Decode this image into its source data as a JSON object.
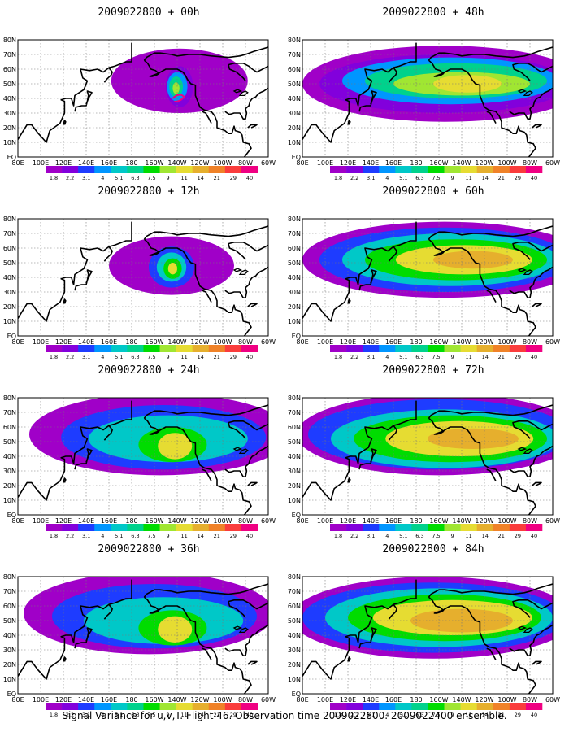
{
  "panels": [
    {
      "title": "2009022800 + 00h"
    },
    {
      "title": "2009022800 + 48h"
    },
    {
      "title": "2009022800 + 12h"
    },
    {
      "title": "2009022800 + 60h"
    },
    {
      "title": "2009022800 + 24h"
    },
    {
      "title": "2009022800 + 72h"
    },
    {
      "title": "2009022800 + 36h"
    },
    {
      "title": "2009022800 + 84h"
    }
  ],
  "lat_labels": [
    "80N",
    "70N",
    "60N",
    "50N",
    "40N",
    "30N",
    "20N",
    "10N",
    "EQ"
  ],
  "lon_labels": [
    "80E",
    "100E",
    "120E",
    "140E",
    "160E",
    "180",
    "160W",
    "140W",
    "120W",
    "100W",
    "80W",
    "60W"
  ],
  "colorbar": {
    "labels": [
      "1.8",
      "2.2",
      "3.1",
      "4",
      "5.1",
      "6.3",
      "7.5",
      "9",
      "11",
      "14",
      "21",
      "29",
      "40"
    ],
    "colors": [
      "#a000c8",
      "#8200dc",
      "#1e3cff",
      "#0096ff",
      "#00c8c8",
      "#00d28c",
      "#00dc00",
      "#a0e632",
      "#e6dc32",
      "#e6af2d",
      "#f08228",
      "#fa3c3c",
      "#f00082"
    ]
  },
  "caption": "Signal Variance for u,v,T. Flight 46. Observation time 2009022800. 2009022400 ensemble."
}
